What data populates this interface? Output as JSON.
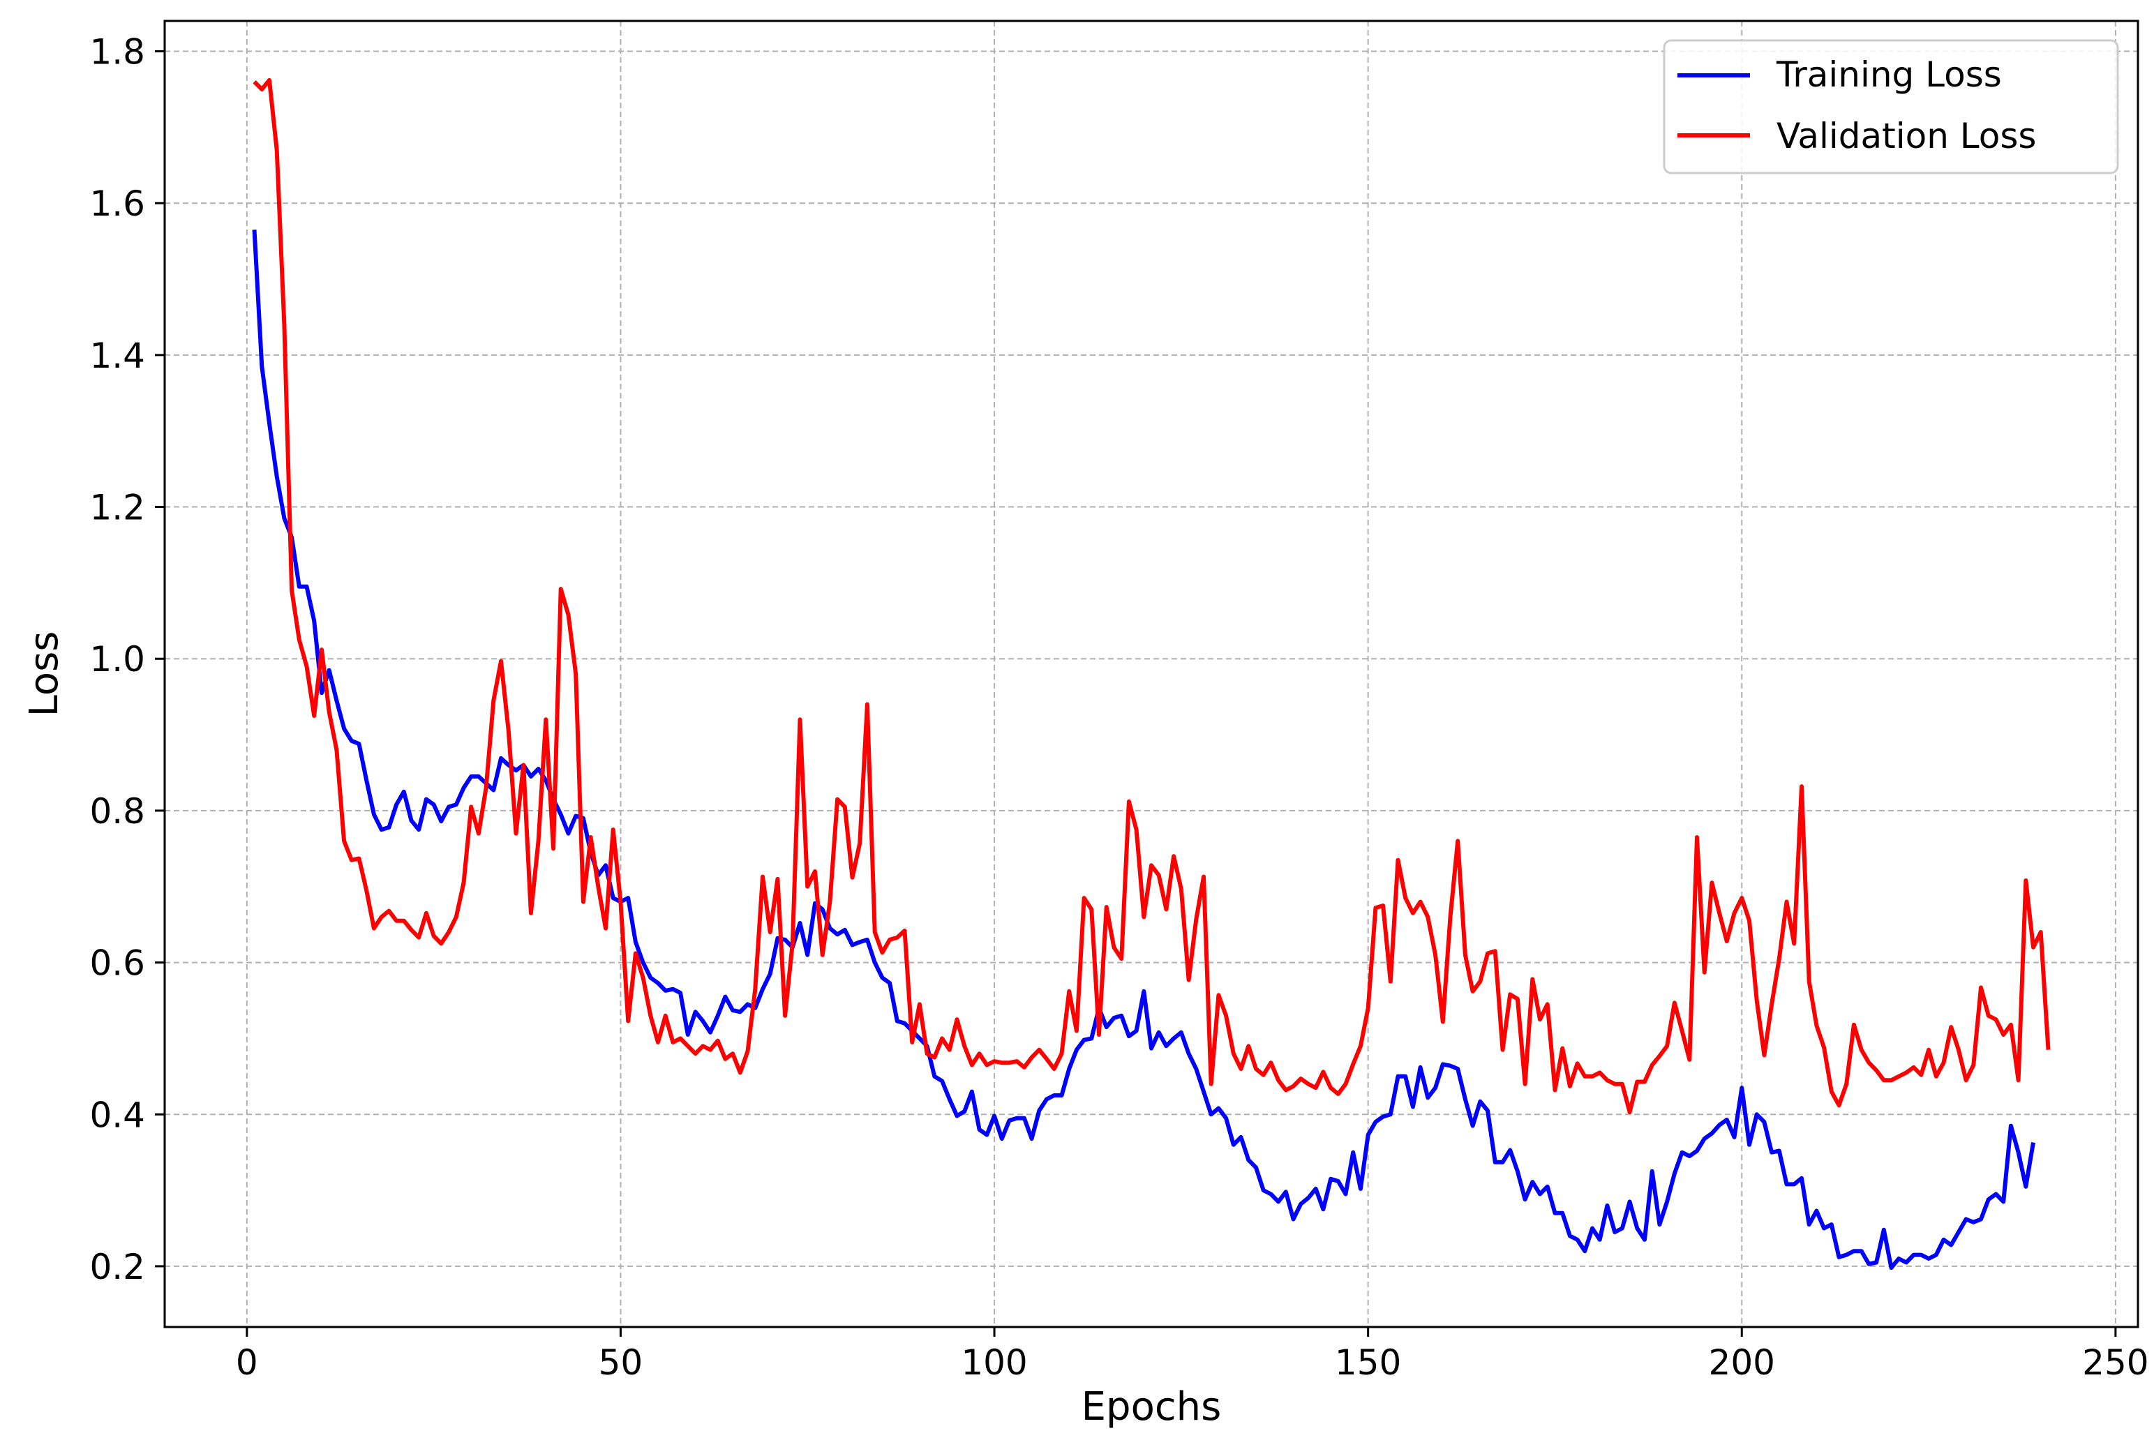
{
  "chart_data": {
    "type": "line",
    "title": "",
    "xlabel": "Epochs",
    "ylabel": "Loss",
    "xlim": [
      -11,
      253
    ],
    "ylim": [
      0.12,
      1.84
    ],
    "xticks": [
      0,
      50,
      100,
      150,
      200,
      250
    ],
    "xtick_labels": [
      "0",
      "50",
      "100",
      "150",
      "200",
      "250"
    ],
    "yticks": [
      0.2,
      0.4,
      0.6,
      0.8,
      1.0,
      1.2,
      1.4,
      1.6,
      1.8
    ],
    "ytick_labels": [
      "0.2",
      "0.4",
      "0.6",
      "0.8",
      "1.0",
      "1.2",
      "1.4",
      "1.6",
      "1.8"
    ],
    "grid": true,
    "legend_position": "top-right",
    "series": [
      {
        "name": "Training Loss",
        "color": "#0000ff",
        "x_start": 1,
        "values": [
          1.565,
          1.385,
          1.31,
          1.24,
          1.185,
          1.16,
          1.095,
          1.095,
          1.05,
          0.955,
          0.985,
          0.945,
          0.908,
          0.892,
          0.888,
          0.84,
          0.795,
          0.775,
          0.778,
          0.808,
          0.825,
          0.787,
          0.775,
          0.815,
          0.808,
          0.786,
          0.805,
          0.808,
          0.83,
          0.845,
          0.845,
          0.836,
          0.827,
          0.869,
          0.86,
          0.853,
          0.86,
          0.845,
          0.855,
          0.84,
          0.815,
          0.795,
          0.77,
          0.793,
          0.79,
          0.745,
          0.715,
          0.728,
          0.685,
          0.68,
          0.685,
          0.627,
          0.6,
          0.58,
          0.573,
          0.563,
          0.565,
          0.56,
          0.505,
          0.535,
          0.523,
          0.508,
          0.53,
          0.555,
          0.537,
          0.535,
          0.545,
          0.54,
          0.565,
          0.585,
          0.632,
          0.63,
          0.62,
          0.652,
          0.61,
          0.678,
          0.67,
          0.645,
          0.637,
          0.643,
          0.623,
          0.627,
          0.63,
          0.6,
          0.58,
          0.573,
          0.523,
          0.52,
          0.51,
          0.5,
          0.49,
          0.45,
          0.444,
          0.42,
          0.398,
          0.404,
          0.43,
          0.38,
          0.373,
          0.398,
          0.368,
          0.392,
          0.395,
          0.395,
          0.368,
          0.405,
          0.42,
          0.425,
          0.425,
          0.46,
          0.485,
          0.498,
          0.5,
          0.54,
          0.515,
          0.527,
          0.53,
          0.503,
          0.51,
          0.562,
          0.487,
          0.508,
          0.49,
          0.5,
          0.508,
          0.48,
          0.46,
          0.43,
          0.4,
          0.408,
          0.395,
          0.36,
          0.37,
          0.34,
          0.33,
          0.3,
          0.295,
          0.285,
          0.298,
          0.262,
          0.282,
          0.29,
          0.302,
          0.275,
          0.315,
          0.312,
          0.295,
          0.35,
          0.302,
          0.373,
          0.39,
          0.397,
          0.4,
          0.45,
          0.45,
          0.41,
          0.462,
          0.422,
          0.435,
          0.466,
          0.464,
          0.46,
          0.42,
          0.385,
          0.417,
          0.405,
          0.337,
          0.337,
          0.353,
          0.325,
          0.288,
          0.311,
          0.295,
          0.305,
          0.27,
          0.27,
          0.24,
          0.235,
          0.22,
          0.25,
          0.235,
          0.28,
          0.245,
          0.25,
          0.285,
          0.25,
          0.235,
          0.325,
          0.255,
          0.285,
          0.322,
          0.35,
          0.345,
          0.352,
          0.368,
          0.375,
          0.386,
          0.393,
          0.37,
          0.435,
          0.36,
          0.4,
          0.39,
          0.35,
          0.352,
          0.308,
          0.308,
          0.316,
          0.255,
          0.273,
          0.25,
          0.255,
          0.212,
          0.215,
          0.22,
          0.22,
          0.203,
          0.205,
          0.248,
          0.198,
          0.21,
          0.205,
          0.215,
          0.215,
          0.21,
          0.215,
          0.235,
          0.228,
          0.245,
          0.262,
          0.258,
          0.262,
          0.288,
          0.295,
          0.285,
          0.385,
          0.35,
          0.305,
          0.363
        ]
      },
      {
        "name": "Validation Loss",
        "color": "#ff0000",
        "x_start": 1,
        "values": [
          1.76,
          1.75,
          1.762,
          1.67,
          1.44,
          1.09,
          1.025,
          0.99,
          0.925,
          1.012,
          0.93,
          0.88,
          0.76,
          0.735,
          0.737,
          0.695,
          0.645,
          0.66,
          0.668,
          0.655,
          0.655,
          0.643,
          0.633,
          0.665,
          0.635,
          0.625,
          0.64,
          0.66,
          0.705,
          0.805,
          0.77,
          0.83,
          0.945,
          0.997,
          0.905,
          0.77,
          0.86,
          0.665,
          0.76,
          0.92,
          0.75,
          1.092,
          1.058,
          0.98,
          0.68,
          0.765,
          0.7,
          0.645,
          0.775,
          0.68,
          0.523,
          0.612,
          0.58,
          0.53,
          0.495,
          0.53,
          0.495,
          0.5,
          0.49,
          0.48,
          0.49,
          0.485,
          0.497,
          0.473,
          0.48,
          0.455,
          0.483,
          0.565,
          0.713,
          0.64,
          0.71,
          0.53,
          0.625,
          0.92,
          0.7,
          0.72,
          0.61,
          0.68,
          0.815,
          0.805,
          0.712,
          0.757,
          0.94,
          0.64,
          0.613,
          0.63,
          0.633,
          0.642,
          0.495,
          0.545,
          0.48,
          0.475,
          0.5,
          0.485,
          0.525,
          0.49,
          0.465,
          0.48,
          0.465,
          0.47,
          0.468,
          0.468,
          0.47,
          0.462,
          0.475,
          0.485,
          0.473,
          0.46,
          0.48,
          0.562,
          0.51,
          0.685,
          0.67,
          0.505,
          0.673,
          0.62,
          0.605,
          0.812,
          0.775,
          0.66,
          0.728,
          0.715,
          0.67,
          0.74,
          0.697,
          0.577,
          0.657,
          0.713,
          0.44,
          0.557,
          0.53,
          0.48,
          0.46,
          0.49,
          0.46,
          0.452,
          0.468,
          0.445,
          0.432,
          0.437,
          0.447,
          0.44,
          0.435,
          0.456,
          0.435,
          0.427,
          0.44,
          0.466,
          0.49,
          0.54,
          0.672,
          0.675,
          0.575,
          0.735,
          0.685,
          0.665,
          0.68,
          0.66,
          0.61,
          0.522,
          0.66,
          0.76,
          0.61,
          0.562,
          0.575,
          0.612,
          0.615,
          0.485,
          0.558,
          0.552,
          0.44,
          0.578,
          0.525,
          0.545,
          0.432,
          0.487,
          0.437,
          0.467,
          0.45,
          0.45,
          0.455,
          0.445,
          0.44,
          0.44,
          0.403,
          0.443,
          0.443,
          0.465,
          0.477,
          0.49,
          0.547,
          0.51,
          0.472,
          0.765,
          0.587,
          0.705,
          0.665,
          0.628,
          0.665,
          0.685,
          0.655,
          0.55,
          0.478,
          0.545,
          0.605,
          0.68,
          0.625,
          0.832,
          0.575,
          0.517,
          0.488,
          0.43,
          0.412,
          0.44,
          0.518,
          0.485,
          0.468,
          0.458,
          0.445,
          0.445,
          0.45,
          0.455,
          0.462,
          0.452,
          0.485,
          0.45,
          0.468,
          0.515,
          0.485,
          0.445,
          0.465,
          0.567,
          0.53,
          0.525,
          0.505,
          0.518,
          0.445,
          0.708,
          0.62,
          0.64,
          0.485
        ]
      }
    ]
  }
}
